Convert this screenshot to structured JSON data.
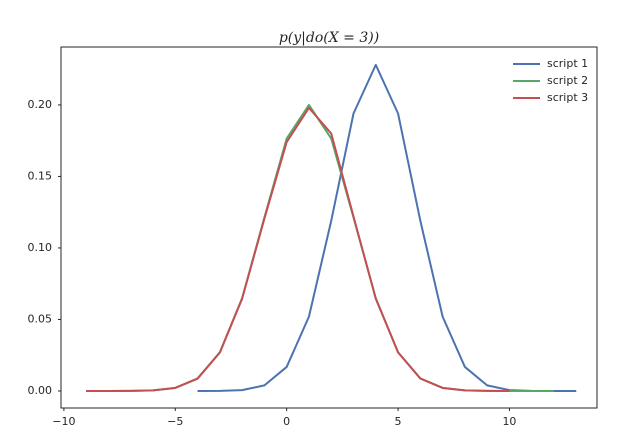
{
  "chart_data": {
    "type": "line",
    "title": "p(y|do(X = 3))",
    "x": [
      -9,
      -8,
      -7,
      -6,
      -5,
      -4,
      -3,
      -2,
      -1,
      0,
      1,
      2,
      3,
      4,
      5,
      6,
      7,
      8,
      9,
      10,
      11,
      12,
      13
    ],
    "series": [
      {
        "name": "script 1",
        "color": "#4c72b0",
        "values": [
          null,
          null,
          null,
          null,
          null,
          0.0,
          0.0001,
          0.0006,
          0.0039,
          0.0168,
          0.052,
          0.119,
          0.194,
          0.228,
          0.194,
          0.119,
          0.052,
          0.0168,
          0.0039,
          0.0006,
          0.0001,
          0.0,
          0.0
        ]
      },
      {
        "name": "script 2",
        "color": "#55a868",
        "values": [
          0.0,
          0.0,
          0.0001,
          0.0004,
          0.0022,
          0.0088,
          0.0271,
          0.0649,
          0.1213,
          0.1765,
          0.2,
          0.1765,
          0.1213,
          0.0649,
          0.0271,
          0.0088,
          0.0022,
          0.0004,
          0.0001,
          0.0,
          0.0,
          0.0,
          null
        ]
      },
      {
        "name": "script 3",
        "color": "#c44e52",
        "values": [
          0.0,
          0.0,
          0.0001,
          0.0004,
          0.0021,
          0.0086,
          0.0268,
          0.0645,
          0.1205,
          0.174,
          0.198,
          0.18,
          0.122,
          0.0645,
          0.027,
          0.0087,
          0.0021,
          0.0004,
          0.0001,
          0.0,
          null,
          null,
          null
        ]
      }
    ],
    "xlim": [
      -10.13,
      13.93
    ],
    "ylim": [
      -0.0119,
      0.2405
    ],
    "xticks": [
      {
        "value": -10,
        "label": "−10"
      },
      {
        "value": -5,
        "label": "−5"
      },
      0,
      5,
      10
    ],
    "yticks": [
      {
        "value": 0,
        "label": "0.00"
      },
      {
        "value": 0.05,
        "label": "0.05"
      },
      {
        "value": 0.1,
        "label": "0.10"
      },
      {
        "value": 0.15,
        "label": "0.15"
      },
      {
        "value": 0.2,
        "label": "0.20"
      }
    ],
    "legend": "upper right"
  }
}
